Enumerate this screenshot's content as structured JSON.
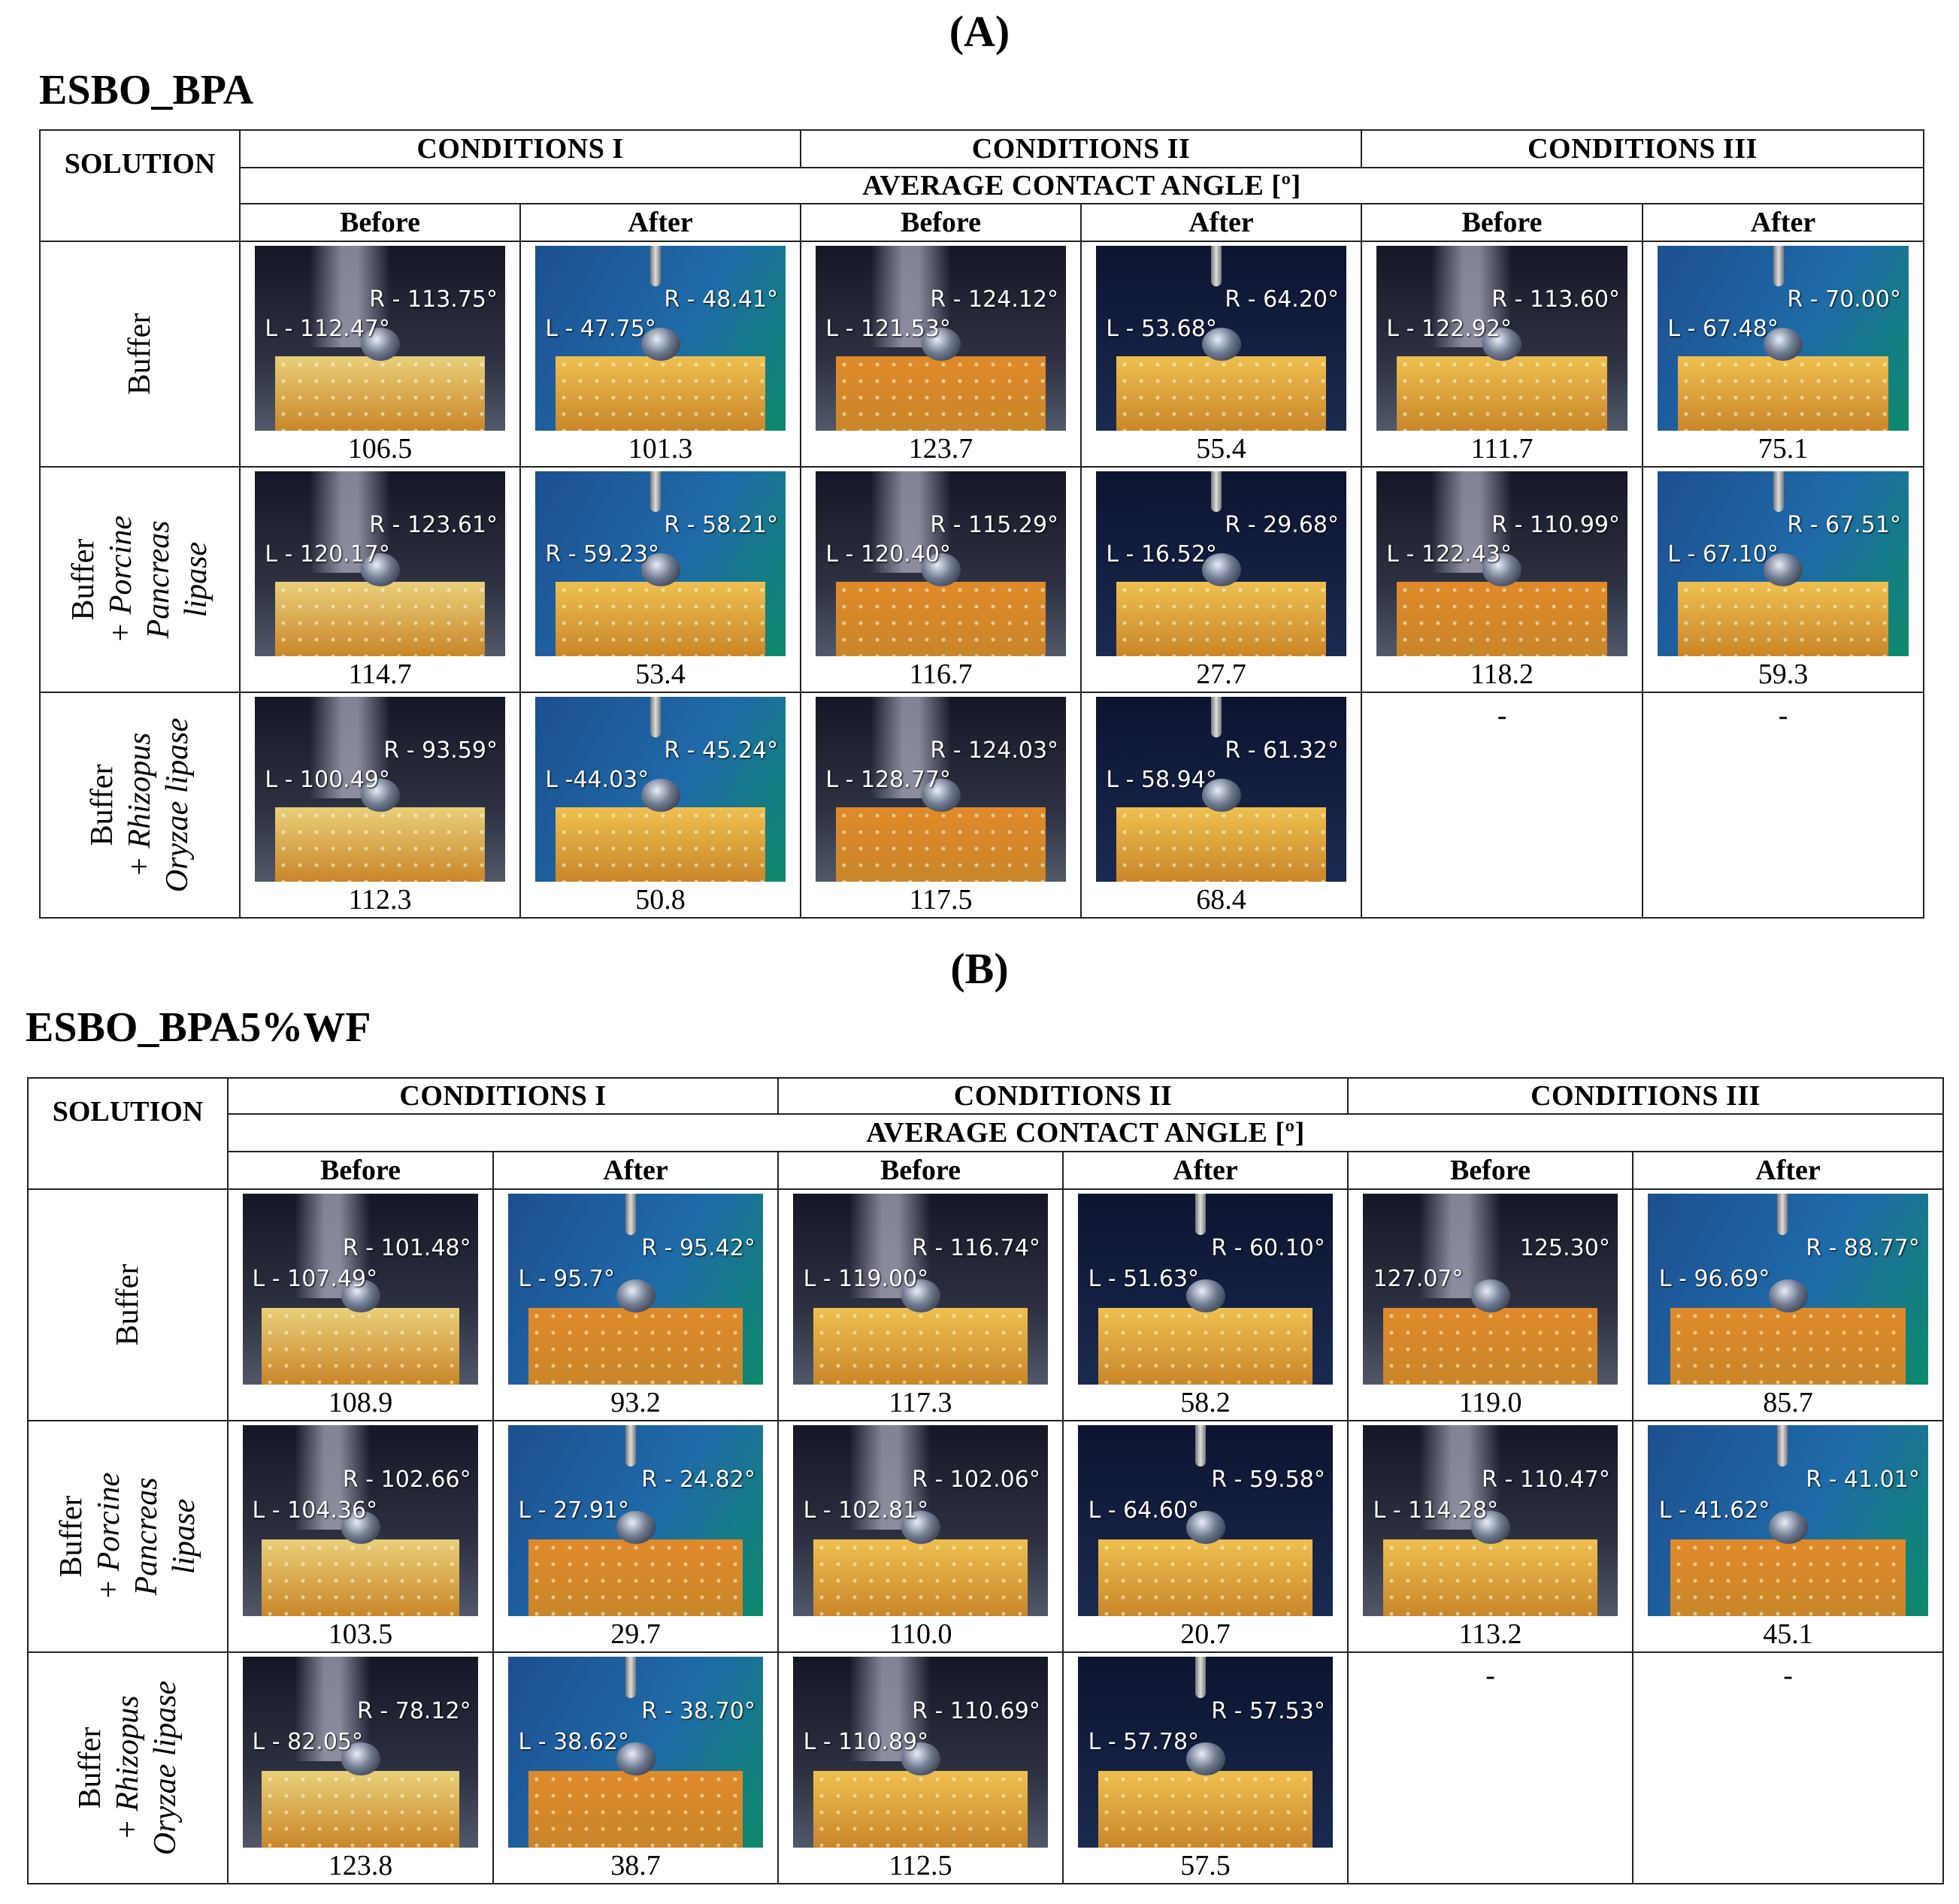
{
  "panels": [
    {
      "letter": "(A)",
      "title": "ESBO_BPA",
      "solution_header": "SOLUTION",
      "conditions": [
        "CONDITIONS I",
        "CONDITIONS II",
        "CONDITIONS III"
      ],
      "subheader": "AVERAGE CONTACT ANGLE [º]",
      "before_label": "Before",
      "after_label": "After",
      "rows": [
        {
          "solution": [
            "Buffer"
          ],
          "cells": [
            {
              "L": "L - 112.47°",
              "R": "R - 113.75°",
              "value": "106.5",
              "tone": "dark",
              "sample": "white"
            },
            {
              "L": "L - 47.75°",
              "R": "R - 48.41°",
              "value": "101.3",
              "tone": "blue",
              "sample": "yellow"
            },
            {
              "L": "L - 121.53°",
              "R": "R - 124.12°",
              "value": "123.7",
              "tone": "dark",
              "sample": "orange"
            },
            {
              "L": "L - 53.68°",
              "R": "R - 64.20°",
              "value": "55.4",
              "tone": "navy",
              "sample": "yellow"
            },
            {
              "L": "L - 122.92°",
              "R": "R - 113.60°",
              "value": "111.7",
              "tone": "dark",
              "sample": "yellow"
            },
            {
              "L": "L - 67.48°",
              "R": "R - 70.00°",
              "value": "75.1",
              "tone": "blue",
              "sample": "yellow"
            }
          ]
        },
        {
          "solution": [
            "Buffer",
            "+ Porcine",
            "Pancreas",
            "lipase"
          ],
          "cells": [
            {
              "L": "L - 120.17°",
              "R": "R - 123.61°",
              "value": "114.7",
              "tone": "dark",
              "sample": "white"
            },
            {
              "L": "R - 59.23°",
              "R": "R - 58.21°",
              "value": "53.4",
              "tone": "blue",
              "sample": "yellow"
            },
            {
              "L": "L - 120.40°",
              "R": "R - 115.29°",
              "value": "116.7",
              "tone": "dark",
              "sample": "orange"
            },
            {
              "L": "L - 16.52°",
              "R": "R - 29.68°",
              "value": "27.7",
              "tone": "navy",
              "sample": "yellow"
            },
            {
              "L": "L - 122.43°",
              "R": "R - 110.99°",
              "value": "118.2",
              "tone": "dark",
              "sample": "orange"
            },
            {
              "L": "L - 67.10°",
              "R": "R - 67.51°",
              "value": "59.3",
              "tone": "blue",
              "sample": "yellow"
            }
          ]
        },
        {
          "solution": [
            "Buffer",
            "+ Rhizopus",
            "Oryzae lipase"
          ],
          "cells": [
            {
              "L": "L - 100.49°",
              "R": "R - 93.59°",
              "value": "112.3",
              "tone": "dark",
              "sample": "white"
            },
            {
              "L": "L -44.03°",
              "R": "R - 45.24°",
              "value": "50.8",
              "tone": "blue",
              "sample": "yellow"
            },
            {
              "L": "L - 128.77°",
              "R": "R - 124.03°",
              "value": "117.5",
              "tone": "dark",
              "sample": "orange"
            },
            {
              "L": "L - 58.94°",
              "R": "R - 61.32°",
              "value": "68.4",
              "tone": "navy",
              "sample": "yellow"
            },
            {
              "empty": "-"
            },
            {
              "empty": "-"
            }
          ]
        }
      ]
    },
    {
      "letter": "(B)",
      "title": "ESBO_BPA5%WF",
      "solution_header": "SOLUTION",
      "conditions": [
        "CONDITIONS I",
        "CONDITIONS II",
        "CONDITIONS III"
      ],
      "subheader": "AVERAGE CONTACT ANGLE [º]",
      "before_label": "Before",
      "after_label": "After",
      "rows": [
        {
          "solution": [
            "Buffer"
          ],
          "cells": [
            {
              "L": "L - 107.49°",
              "R": "R - 101.48°",
              "value": "108.9",
              "tone": "dark",
              "sample": "white"
            },
            {
              "L": "L - 95.7°",
              "R": "R - 95.42°",
              "value": "93.2",
              "tone": "blue",
              "sample": "orange"
            },
            {
              "L": "L - 119.00°",
              "R": "R - 116.74°",
              "value": "117.3",
              "tone": "dark",
              "sample": "yellow"
            },
            {
              "L": "L - 51.63°",
              "R": "R - 60.10°",
              "value": "58.2",
              "tone": "navy",
              "sample": "yellow"
            },
            {
              "L": "127.07°",
              "R": "125.30°",
              "value": "119.0",
              "tone": "dark",
              "sample": "orange"
            },
            {
              "L": "L - 96.69°",
              "R": "R - 88.77°",
              "value": "85.7",
              "tone": "blue",
              "sample": "orange"
            }
          ]
        },
        {
          "solution": [
            "Buffer",
            "+ Porcine",
            "Pancreas",
            "lipase"
          ],
          "cells": [
            {
              "L": "L - 104.36°",
              "R": "R - 102.66°",
              "value": "103.5",
              "tone": "dark",
              "sample": "white"
            },
            {
              "L": "L - 27.91°",
              "R": "R - 24.82°",
              "value": "29.7",
              "tone": "blue",
              "sample": "orange"
            },
            {
              "L": "L - 102.81°",
              "R": "R - 102.06°",
              "value": "110.0",
              "tone": "dark",
              "sample": "yellow"
            },
            {
              "L": "L - 64.60°",
              "R": "R - 59.58°",
              "value": "20.7",
              "tone": "navy",
              "sample": "yellow"
            },
            {
              "L": "L - 114.28°",
              "R": "R - 110.47°",
              "value": "113.2",
              "tone": "dark",
              "sample": "yellow"
            },
            {
              "L": "L - 41.62°",
              "R": "R - 41.01°",
              "value": "45.1",
              "tone": "blue",
              "sample": "orange"
            }
          ]
        },
        {
          "solution": [
            "Buffer",
            "+ Rhizopus",
            "Oryzae lipase"
          ],
          "cells": [
            {
              "L": "L - 82.05°",
              "R": "R - 78.12°",
              "value": "123.8",
              "tone": "dark",
              "sample": "white"
            },
            {
              "L": "L - 38.62°",
              "R": "R - 38.70°",
              "value": "38.7",
              "tone": "blue",
              "sample": "orange"
            },
            {
              "L": "L - 110.89°",
              "R": "R - 110.69°",
              "value": "112.5",
              "tone": "dark",
              "sample": "yellow"
            },
            {
              "L": "L - 57.78°",
              "R": "R - 57.53°",
              "value": "57.5",
              "tone": "navy",
              "sample": "yellow"
            },
            {
              "empty": "-"
            },
            {
              "empty": "-"
            }
          ]
        }
      ]
    }
  ],
  "colors": {
    "dark": "#141826",
    "blue": "#1d4f8f",
    "navy": "#0c1430",
    "teal": "#0d8a6a",
    "sample_white": "#e9cf7a",
    "sample_yellow": "#eec050",
    "sample_orange": "#e08a2a"
  }
}
